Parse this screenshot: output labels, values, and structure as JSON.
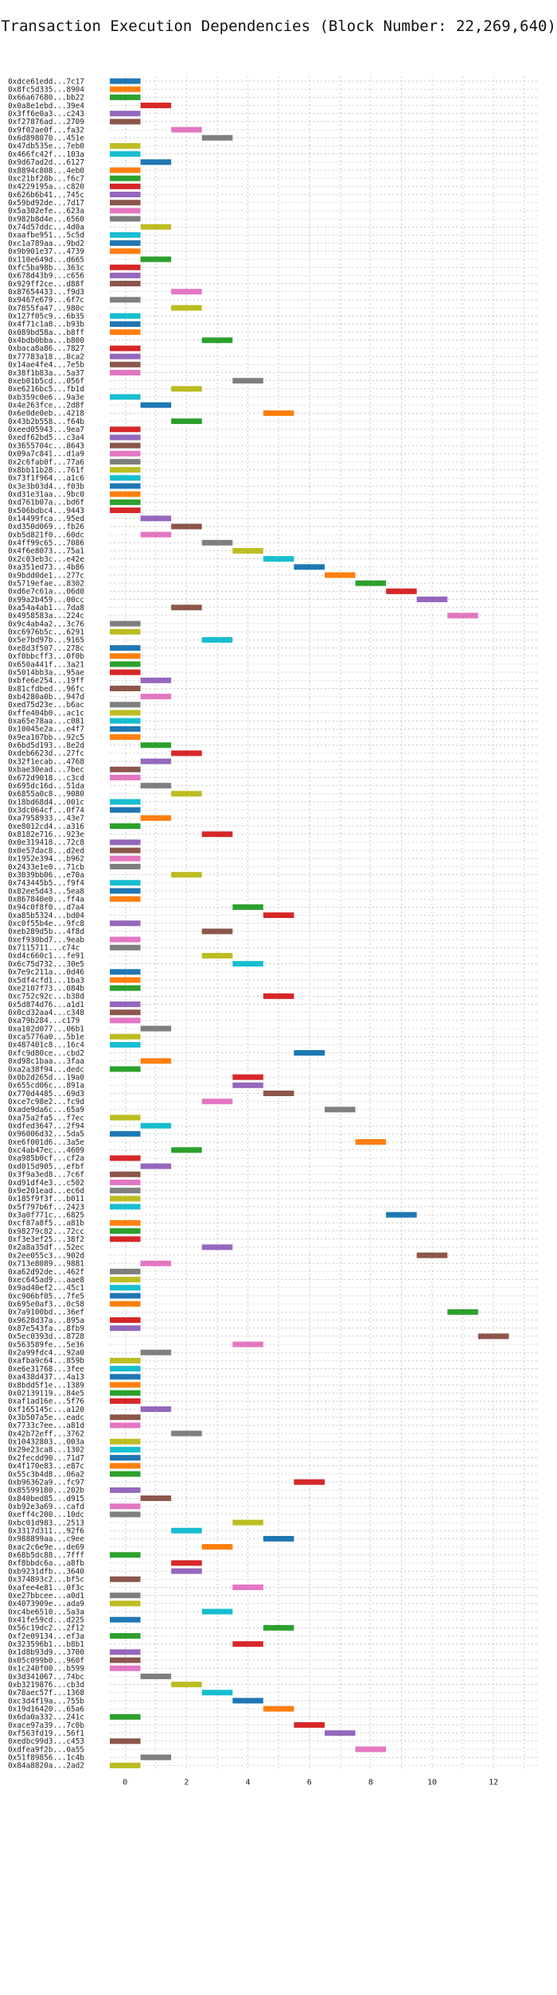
{
  "chart_data": {
    "type": "bar",
    "title": "Transaction Execution Dependencies (Block Number: 22,269,640)",
    "xlabel": "",
    "ylabel": "",
    "xlim": [
      -0.5,
      13.5
    ],
    "xticks": [
      0,
      2,
      4,
      6,
      8,
      10,
      12
    ],
    "grid": true,
    "legend": "none",
    "palette": [
      "#1f77b4",
      "#ff7f0e",
      "#2ca02c",
      "#d62728",
      "#9467bd",
      "#8c564b",
      "#e377c2",
      "#7f7f7f",
      "#bcbd22",
      "#17becf"
    ],
    "transactions": [
      [
        "0xdce61edd...7c17",
        0,
        0
      ],
      [
        "0x8fc5d335...8904",
        0,
        1
      ],
      [
        "0x66a67680...bb22",
        0,
        2
      ],
      [
        "0x0a8e1ebd...39e4",
        1,
        3
      ],
      [
        "0x3ff6e0a3...c243",
        0,
        4
      ],
      [
        "0xf27876ad...2709",
        0,
        5
      ],
      [
        "0x9f02ae0f...fa32",
        2,
        6
      ],
      [
        "0x6d898070...451e",
        3,
        7
      ],
      [
        "0x47db535e...7eb0",
        0,
        8
      ],
      [
        "0x466fc42f...103a",
        0,
        9
      ],
      [
        "0x9d67ad2d...6127",
        1,
        0
      ],
      [
        "0x8894c808...4eb0",
        0,
        1
      ],
      [
        "0xc21bf28b...f6c7",
        0,
        2
      ],
      [
        "0x4229195a...c820",
        0,
        3
      ],
      [
        "0x626b6b41...745c",
        0,
        4
      ],
      [
        "0x59bd92de...7d17",
        0,
        5
      ],
      [
        "0x5a302efe...623a",
        0,
        6
      ],
      [
        "0x982b8d4e...6560",
        0,
        7
      ],
      [
        "0x74d57ddc...4d0a",
        1,
        8
      ],
      [
        "0xaafbe951...5c5d",
        0,
        9
      ],
      [
        "0xc1a789aa...9bd2",
        0,
        0
      ],
      [
        "0x9b901e37...4739",
        0,
        1
      ],
      [
        "0x110e649d...d665",
        1,
        2
      ],
      [
        "0xfc5ba98b...363c",
        0,
        3
      ],
      [
        "0x678d43b9...c656",
        0,
        4
      ],
      [
        "0x929ff2ce...d88f",
        0,
        5
      ],
      [
        "0x87654433...f9d3",
        2,
        6
      ],
      [
        "0x9467e679...6f7c",
        0,
        7
      ],
      [
        "0x7855fa47...980c",
        2,
        8
      ],
      [
        "0x127f05c9...6b35",
        0,
        9
      ],
      [
        "0x4f71c1a8...b93b",
        0,
        0
      ],
      [
        "0x089bd58a...b8ff",
        0,
        1
      ],
      [
        "0x4bdb0bba...b800",
        3,
        2
      ],
      [
        "0xbaca8a86...7827",
        0,
        3
      ],
      [
        "0x77783a18...8ca2",
        0,
        4
      ],
      [
        "0x14ae4fe4...7e5b",
        0,
        5
      ],
      [
        "0x38f1b83a...5a37",
        0,
        6
      ],
      [
        "0xeb01b5cd...056f",
        4,
        7
      ],
      [
        "0xe6216bc5...fb1d",
        2,
        8
      ],
      [
        "0xb359c0e6...9a3e",
        0,
        9
      ],
      [
        "0x4e263fce...2d8f",
        1,
        0
      ],
      [
        "0x6e0de0eb...4218",
        5,
        1
      ],
      [
        "0x43b2b558...f64b",
        2,
        2
      ],
      [
        "0xeed05943...9ea7",
        0,
        3
      ],
      [
        "0xedf62bd5...c3a4",
        0,
        4
      ],
      [
        "0x3655704c...8643",
        0,
        5
      ],
      [
        "0x09a7c841...d1a9",
        0,
        6
      ],
      [
        "0x2c6fab0f...77a6",
        0,
        7
      ],
      [
        "0x8bb11b28...761f",
        0,
        8
      ],
      [
        "0x73f1f964...a1c6",
        0,
        9
      ],
      [
        "0x3e3b03d4...f03b",
        0,
        0
      ],
      [
        "0xd31e31aa...9bc0",
        0,
        1
      ],
      [
        "0xd761b07a...bd6f",
        0,
        2
      ],
      [
        "0x506bdbc4...9443",
        0,
        3
      ],
      [
        "0x14499fca...95ed",
        1,
        4
      ],
      [
        "0xd350d069...fb26",
        2,
        5
      ],
      [
        "0xb5d821f0...60dc",
        1,
        6
      ],
      [
        "0x4ff99c65...7086",
        3,
        7
      ],
      [
        "0x4f6e8073...75a1",
        4,
        8
      ],
      [
        "0x2c03eb3c...e42e",
        5,
        9
      ],
      [
        "0xa351ed73...4b86",
        6,
        0
      ],
      [
        "0x9bdd0de1...277c",
        7,
        1
      ],
      [
        "0x5719efae...8302",
        8,
        2
      ],
      [
        "0xd6e7c61a...06d0",
        9,
        3
      ],
      [
        "0x99a2b459...00cc",
        10,
        4
      ],
      [
        "0xa54a4ab1...7da8",
        2,
        5
      ],
      [
        "0x4958583a...224c",
        11,
        6
      ],
      [
        "0x9c4ab4a2...3c76",
        0,
        7
      ],
      [
        "0xc6976b5c...6291",
        0,
        8
      ],
      [
        "0x5e7bd97b...9165",
        3,
        9
      ],
      [
        "0xe8d3f507...278c",
        0,
        0
      ],
      [
        "0xf0bbcff3...0f0b",
        0,
        1
      ],
      [
        "0x650a441f...3a21",
        0,
        2
      ],
      [
        "0x5014bb3a...95ae",
        0,
        3
      ],
      [
        "0xbfe6e254...19ff",
        1,
        4
      ],
      [
        "0x81cfdbed...96fc",
        0,
        5
      ],
      [
        "0xb4280a0b...947d",
        1,
        6
      ],
      [
        "0xed75d23e...b6ac",
        0,
        7
      ],
      [
        "0xffe404b0...ac1c",
        0,
        8
      ],
      [
        "0xa65e78aa...c081",
        0,
        9
      ],
      [
        "0x10045e2a...e4f7",
        0,
        0
      ],
      [
        "0x9ea107bb...92c5",
        0,
        1
      ],
      [
        "0x6bd5d193...8e2d",
        1,
        2
      ],
      [
        "0xdeb6623d...27fc",
        2,
        3
      ],
      [
        "0x32f1ecab...4768",
        1,
        4
      ],
      [
        "0xbae30ead...7bec",
        0,
        5
      ],
      [
        "0x672d9018...c3cd",
        0,
        6
      ],
      [
        "0x695dc16d...51da",
        1,
        7
      ],
      [
        "0x6855a0c8...9080",
        2,
        8
      ],
      [
        "0x18bd68d4...001c",
        0,
        9
      ],
      [
        "0x3dc064cf...0f74",
        0,
        0
      ],
      [
        "0xa7958933...43e7",
        1,
        1
      ],
      [
        "0xe8012cd4...a316",
        0,
        2
      ],
      [
        "0x8182e716...923e",
        3,
        3
      ],
      [
        "0x0e319418...72c8",
        0,
        4
      ],
      [
        "0x0e57dac8...d2ed",
        0,
        5
      ],
      [
        "0x1952e394...b962",
        0,
        6
      ],
      [
        "0x2433e1e0...71cb",
        0,
        7
      ],
      [
        "0x3039bb06...e70a",
        2,
        8
      ],
      [
        "0x743445b5...f9f4",
        0,
        9
      ],
      [
        "0x82ee5d43...5ea8",
        0,
        0
      ],
      [
        "0x867840e0...ff4a",
        0,
        1
      ],
      [
        "0x94c0f8f0...d7a4",
        4,
        2
      ],
      [
        "0xa85b5324...bd04",
        5,
        3
      ],
      [
        "0xc0f55b4e...9fc8",
        0,
        4
      ],
      [
        "0xeb289d5b...4f8d",
        3,
        5
      ],
      [
        "0xef930bd7...9eab",
        0,
        6
      ],
      [
        "0x7115711...c74c",
        0,
        7
      ],
      [
        "0xd4c660c1...fe91",
        3,
        8
      ],
      [
        "0x6c75d732...30e5",
        4,
        9
      ],
      [
        "0x7e9c211a...0d46",
        0,
        0
      ],
      [
        "0x5df4cfd1...1ba3",
        0,
        1
      ],
      [
        "0xe2107f73...084b",
        0,
        2
      ],
      [
        "0xc752c92c...b38d",
        5,
        3
      ],
      [
        "0x5d874d76...a1d1",
        0,
        4
      ],
      [
        "0x0cd32aa4...c348",
        0,
        5
      ],
      [
        "0xa79b284...c179",
        0,
        6
      ],
      [
        "0xa102d077...06b1",
        1,
        7
      ],
      [
        "0xca5776a0...5b1e",
        0,
        8
      ],
      [
        "0x487401c8...16c4",
        0,
        9
      ],
      [
        "0xfc9d80ce...cbd2",
        6,
        0
      ],
      [
        "0xd98c1baa...3faa",
        1,
        1
      ],
      [
        "0xa2a38f94...dedc",
        0,
        2
      ],
      [
        "0x0b2d265d...19a0",
        4,
        3
      ],
      [
        "0x655cd06c...891a",
        4,
        4
      ],
      [
        "0x770d4485...69d3",
        5,
        5
      ],
      [
        "0xce7c98e2...fc9d",
        3,
        6
      ],
      [
        "0xade9da6c...65a9",
        7,
        7
      ],
      [
        "0xa75a2fa5...f7ec",
        0,
        8
      ],
      [
        "0xdfed3647...2f94",
        1,
        9
      ],
      [
        "0x96006d32...5da5",
        0,
        0
      ],
      [
        "0xe6f001d6...3a5e",
        8,
        1
      ],
      [
        "0xc4ab47ec...4609",
        2,
        2
      ],
      [
        "0xa985b0cf...cf2a",
        0,
        3
      ],
      [
        "0xd015d905...efbf",
        1,
        4
      ],
      [
        "0x3f9a3ed8...7c6f",
        0,
        5
      ],
      [
        "0xd91df4e3...c502",
        0,
        6
      ],
      [
        "0x9e201ead...ec6d",
        0,
        7
      ],
      [
        "0x185f9f3f...b011",
        0,
        8
      ],
      [
        "0x5f797b6f...2423",
        0,
        9
      ],
      [
        "0x3a0f771c...6825",
        9,
        0
      ],
      [
        "0xcf87a8f5...a81b",
        0,
        1
      ],
      [
        "0x98279c82...72cc",
        0,
        2
      ],
      [
        "0xf3e3ef25...38f2",
        0,
        3
      ],
      [
        "0x2a8a35df...52ec",
        3,
        4
      ],
      [
        "0x2ee055c3...902d",
        10,
        5
      ],
      [
        "0x713e8089...9881",
        1,
        6
      ],
      [
        "0xa62d92de...462f",
        0,
        7
      ],
      [
        "0xec645ad9...aae8",
        0,
        8
      ],
      [
        "0x9ad40ef2...45c1",
        0,
        9
      ],
      [
        "0xc906bf05...7fe5",
        0,
        0
      ],
      [
        "0x695e0af3...0c58",
        0,
        1
      ],
      [
        "0x7a9100bd...36ef",
        11,
        2
      ],
      [
        "0x9628d37a...895a",
        0,
        3
      ],
      [
        "0x87e543fa...8fb9",
        0,
        4
      ],
      [
        "0x5ec0393d...8728",
        12,
        5
      ],
      [
        "0x563589fe...5e36",
        4,
        6
      ],
      [
        "0x2a99fdc4...92a0",
        1,
        7
      ],
      [
        "0xafba9c64...859b",
        0,
        8
      ],
      [
        "0xe6e31768...3fee",
        0,
        9
      ],
      [
        "0xa438d437...4a13",
        0,
        0
      ],
      [
        "0x8bdd5f1e...1389",
        0,
        1
      ],
      [
        "0x02139119...84e5",
        0,
        2
      ],
      [
        "0xaf1ad16e...5f76",
        0,
        3
      ],
      [
        "0xf165145c...a120",
        1,
        4
      ],
      [
        "0x3b507a5e...eadc",
        0,
        5
      ],
      [
        "0x7733c7ee...a81d",
        0,
        6
      ],
      [
        "0x42b72eff...3762",
        2,
        7
      ],
      [
        "0x10432803...003a",
        0,
        8
      ],
      [
        "0x29e23ca8...1302",
        0,
        9
      ],
      [
        "0x2fecdd90...71d7",
        0,
        0
      ],
      [
        "0x4f170e83...e87c",
        0,
        1
      ],
      [
        "0x55c3b4d8...06a2",
        0,
        2
      ],
      [
        "0xb96362a9...fc97",
        6,
        3
      ],
      [
        "0x85599180...202b",
        0,
        4
      ],
      [
        "0x840bed85...d915",
        1,
        5
      ],
      [
        "0xb92e3a69...cafd",
        0,
        6
      ],
      [
        "0xeff4c200...10dc",
        0,
        7
      ],
      [
        "0xbc01d983...2513",
        4,
        8
      ],
      [
        "0x3317d311...92f6",
        2,
        9
      ],
      [
        "0x988899aa...c9ee",
        5,
        0
      ],
      [
        "0xac2c6e9e...de69",
        3,
        1
      ],
      [
        "0x68b5dc88...7fff",
        0,
        2
      ],
      [
        "0xf8bbdc6a...a8fb",
        2,
        3
      ],
      [
        "0xb9231dfb...3640",
        2,
        4
      ],
      [
        "0x374893c2...bf5c",
        0,
        5
      ],
      [
        "0xafee4e81...0f3c",
        4,
        6
      ],
      [
        "0xe27bbcee...a0d1",
        0,
        7
      ],
      [
        "0x4073909e...ada9",
        0,
        8
      ],
      [
        "0xc4be6510...5a3a",
        3,
        9
      ],
      [
        "0x41fe59cd...d225",
        0,
        0
      ],
      [
        "0x56c19dc2...2f12",
        5,
        2
      ],
      [
        "0xf2e09134...ef3a",
        0,
        2
      ],
      [
        "0x323596b1...b8b1",
        4,
        3
      ],
      [
        "0x1d8b93d9...3700",
        0,
        4
      ],
      [
        "0x05c099b0...960f",
        0,
        5
      ],
      [
        "0x1c240f00...b599",
        0,
        6
      ],
      [
        "0x3d341067...74bc",
        1,
        7
      ],
      [
        "0xb3219876...cb3d",
        2,
        8
      ],
      [
        "0x78aec57f...1368",
        3,
        9
      ],
      [
        "0xc3d4f19a...755b",
        4,
        0
      ],
      [
        "0x19d16420...65a6",
        5,
        1
      ],
      [
        "0x6da0a332...241c",
        0,
        2
      ],
      [
        "0xace97a39...7c0b",
        6,
        3
      ],
      [
        "0xf563fd19...56f1",
        7,
        4
      ],
      [
        "0xedbc99d3...c453",
        0,
        5
      ],
      [
        "0xdfea9f2b...0a55",
        8,
        6
      ],
      [
        "0x51f89856...1c4b",
        1,
        7
      ],
      [
        "0x84a8820a...2ad2",
        0,
        8
      ]
    ]
  }
}
